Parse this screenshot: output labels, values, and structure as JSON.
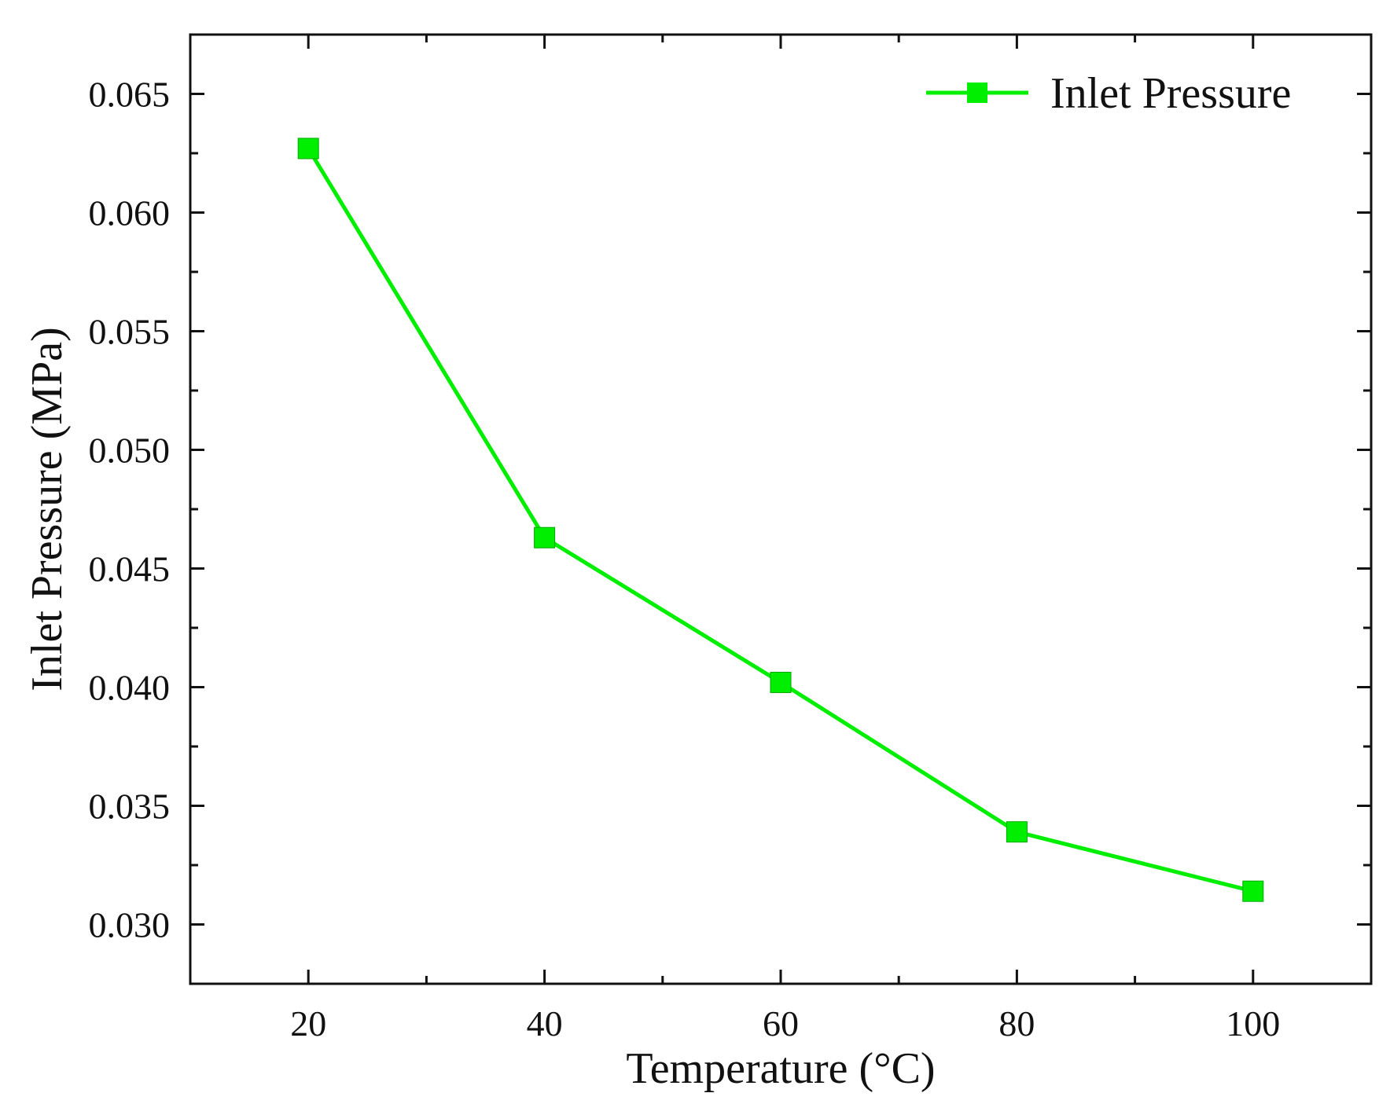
{
  "chart_data": {
    "type": "line",
    "title": "",
    "xlabel": "Temperature (°C)",
    "ylabel": "Inlet Pressure (MPa)",
    "xlim": [
      10,
      110
    ],
    "ylim": [
      0.0275,
      0.0675
    ],
    "xticks": [
      20,
      40,
      60,
      80,
      100
    ],
    "xtick_labels": [
      "20",
      "40",
      "60",
      "80",
      "100"
    ],
    "yticks": [
      0.03,
      0.035,
      0.04,
      0.045,
      0.05,
      0.055,
      0.06,
      0.065
    ],
    "ytick_labels": [
      "0.030",
      "0.035",
      "0.040",
      "0.045",
      "0.050",
      "0.055",
      "0.060",
      "0.065"
    ],
    "x_minor_step": 10,
    "y_minor_step": 0.0025,
    "grid": false,
    "legend_position": "top-right",
    "series": [
      {
        "name": "Inlet Pressure",
        "color": "#00ee00",
        "marker": "square",
        "x": [
          20,
          40,
          60,
          80,
          100
        ],
        "values": [
          0.0627,
          0.0463,
          0.0402,
          0.0339,
          0.0314
        ]
      }
    ]
  }
}
